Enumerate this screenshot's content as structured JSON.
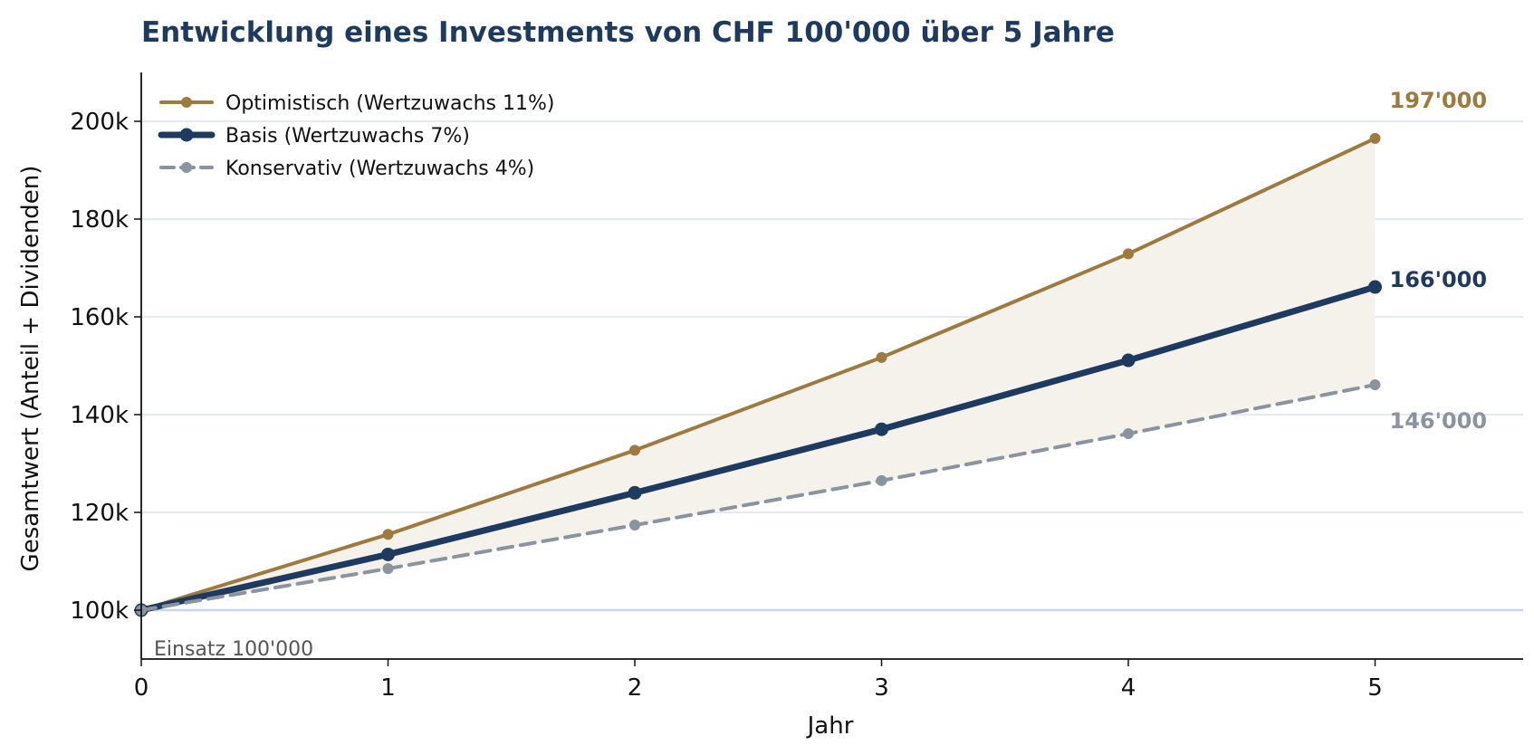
{
  "chart_data": {
    "type": "line",
    "title": "Entwicklung eines Investments von CHF 100'000 über 5 Jahre",
    "xlabel": "Jahr",
    "ylabel": "Gesamtwert (Anteil + Dividenden)",
    "x": [
      0,
      1,
      2,
      3,
      4,
      5
    ],
    "xlim": [
      0,
      5.6
    ],
    "ylim": [
      90000,
      210000
    ],
    "x_ticks": [
      0,
      1,
      2,
      3,
      4,
      5
    ],
    "x_tick_labels": [
      "0",
      "1",
      "2",
      "3",
      "4",
      "5"
    ],
    "y_ticks": [
      100000,
      120000,
      140000,
      160000,
      180000,
      200000
    ],
    "y_tick_labels": [
      "100k",
      "120k",
      "140k",
      "160k",
      "180k",
      "200k"
    ],
    "grid": "horizontal",
    "legend_position": "top-left",
    "series": [
      {
        "name": "Optimistisch (Wertzuwachs 11%)",
        "values": [
          100000,
          115500,
          132700,
          151700,
          172900,
          196500
        ],
        "color": "#9c7a40",
        "style": "solid",
        "end_label": "197'000"
      },
      {
        "name": "Basis (Wertzuwachs 7%)",
        "values": [
          100000,
          111400,
          124000,
          137000,
          151100,
          166100
        ],
        "color": "#1f3a5f",
        "style": "solid-thick",
        "end_label": "166'000"
      },
      {
        "name": "Konservativ (Wertzuwachs 4%)",
        "values": [
          100000,
          108500,
          117400,
          126500,
          136100,
          146100
        ],
        "color": "#8a939e",
        "style": "dashed",
        "end_label": "146'000"
      }
    ],
    "band_fill": "#f5f1eb",
    "baseline": {
      "value": 100000,
      "label": "Einsatz 100'000",
      "color": "#c9d6e8"
    },
    "grid_color": "#d6dee8"
  }
}
